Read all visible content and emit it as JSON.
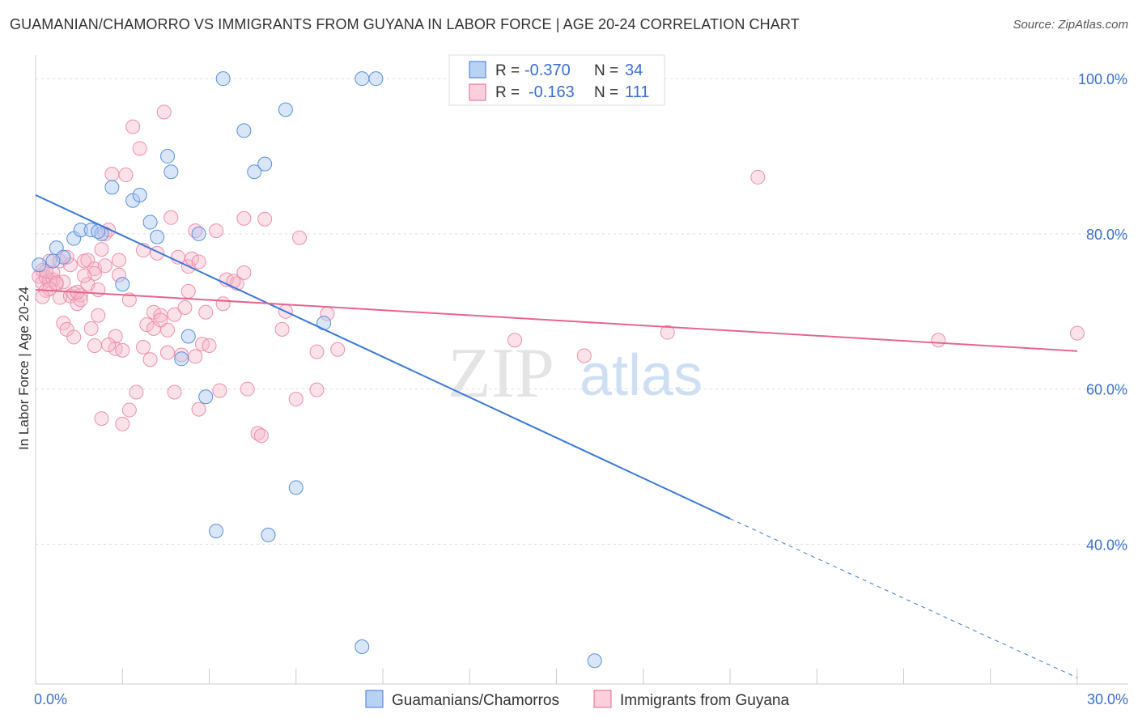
{
  "title": "GUAMANIAN/CHAMORRO VS IMMIGRANTS FROM GUYANA IN LABOR FORCE | AGE 20-24 CORRELATION CHART",
  "source": "Source: ZipAtlas.com",
  "watermark": {
    "zip": "ZIP",
    "atlas": "atlas"
  },
  "stats_box": {
    "rows": [
      {
        "r_label": "R =",
        "r_value": "-0.370",
        "n_label": "N =",
        "n_value": "34",
        "color": "#a8c8f0"
      },
      {
        "r_label": "R =",
        "r_value": "-0.163",
        "n_label": "N =",
        "n_value": "111",
        "color": "#f6b6c8"
      }
    ]
  },
  "colors": {
    "blue": "#3a78d8",
    "blue_fill": "#aac8f0",
    "pink": "#e8648e",
    "pink_fill": "#f6b6c8",
    "grid": "#dddddd",
    "accent": "#3a6fd0"
  },
  "chart_data": {
    "type": "scatter",
    "title": "GUAMANIAN/CHAMORRO VS IMMIGRANTS FROM GUYANA IN LABOR FORCE | AGE 20-24 CORRELATION CHART",
    "xlabel": "",
    "ylabel": "In Labor Force | Age 20-24",
    "xlim": [
      0,
      30
    ],
    "ylim": [
      22,
      102
    ],
    "x_tick_labels": [
      {
        "value": 0,
        "label": "0.0%"
      },
      {
        "value": 30,
        "label": "30.0%"
      }
    ],
    "y_tick_labels": [
      {
        "value": 100,
        "label": "100.0%"
      },
      {
        "value": 80,
        "label": "80.0%"
      },
      {
        "value": 60,
        "label": "60.0%"
      },
      {
        "value": 40,
        "label": "40.0%"
      }
    ],
    "series": [
      {
        "name": "Guamanians/Chamorros",
        "color": "#3a78d8",
        "points": [
          [
            0.1,
            76.0
          ],
          [
            0.6,
            78.2
          ],
          [
            0.8,
            77.0
          ],
          [
            1.1,
            79.4
          ],
          [
            0.5,
            76.5
          ],
          [
            1.3,
            80.5
          ],
          [
            1.6,
            80.5
          ],
          [
            1.9,
            80.0
          ],
          [
            2.2,
            86.0
          ],
          [
            2.5,
            73.5
          ],
          [
            2.8,
            84.3
          ],
          [
            3.0,
            85.0
          ],
          [
            3.3,
            81.5
          ],
          [
            3.5,
            79.6
          ],
          [
            3.8,
            90.0
          ],
          [
            3.9,
            88.0
          ],
          [
            4.2,
            63.9
          ],
          [
            4.4,
            66.8
          ],
          [
            4.7,
            80.0
          ],
          [
            4.9,
            59.0
          ],
          [
            5.2,
            41.7
          ],
          [
            5.4,
            100.0
          ],
          [
            6.0,
            93.3
          ],
          [
            6.3,
            88.0
          ],
          [
            6.6,
            89.0
          ],
          [
            6.7,
            41.2
          ],
          [
            7.2,
            96.0
          ],
          [
            7.5,
            47.3
          ],
          [
            8.3,
            68.5
          ],
          [
            9.4,
            100.0
          ],
          [
            9.4,
            26.8
          ],
          [
            9.8,
            100.0
          ],
          [
            16.1,
            25.0
          ],
          [
            1.8,
            80.3
          ]
        ],
        "trend": {
          "x0": 0,
          "y0": 85.0,
          "x1": 20.0,
          "y1": 43.3,
          "dashed_to_x": 30.0,
          "dashed_to_y": 22.8
        }
      },
      {
        "name": "Immigrants from Guyana",
        "color": "#e8648e",
        "points": [
          [
            0.1,
            74.5
          ],
          [
            0.2,
            75.3
          ],
          [
            0.2,
            73.7
          ],
          [
            0.3,
            74.4
          ],
          [
            0.3,
            72.7
          ],
          [
            0.4,
            74.0
          ],
          [
            0.4,
            76.5
          ],
          [
            0.5,
            74.1
          ],
          [
            0.5,
            75.0
          ],
          [
            0.6,
            73.5
          ],
          [
            0.7,
            76.5
          ],
          [
            0.7,
            71.8
          ],
          [
            0.8,
            73.8
          ],
          [
            0.8,
            68.5
          ],
          [
            0.9,
            67.7
          ],
          [
            1.0,
            72.0
          ],
          [
            1.0,
            76.0
          ],
          [
            1.1,
            66.7
          ],
          [
            1.1,
            72.3
          ],
          [
            1.2,
            71.0
          ],
          [
            1.3,
            72.1
          ],
          [
            1.3,
            71.5
          ],
          [
            1.4,
            76.5
          ],
          [
            1.5,
            73.5
          ],
          [
            1.5,
            76.6
          ],
          [
            1.6,
            67.8
          ],
          [
            1.7,
            75.5
          ],
          [
            1.7,
            74.9
          ],
          [
            1.7,
            65.6
          ],
          [
            1.8,
            72.8
          ],
          [
            1.8,
            69.5
          ],
          [
            1.9,
            56.2
          ],
          [
            1.9,
            78.0
          ],
          [
            2.0,
            80.0
          ],
          [
            2.0,
            75.9
          ],
          [
            2.1,
            80.5
          ],
          [
            2.2,
            87.7
          ],
          [
            2.3,
            66.8
          ],
          [
            2.3,
            65.2
          ],
          [
            2.4,
            76.6
          ],
          [
            2.4,
            74.7
          ],
          [
            2.5,
            65.0
          ],
          [
            2.5,
            55.5
          ],
          [
            2.6,
            87.6
          ],
          [
            2.7,
            57.3
          ],
          [
            2.8,
            93.8
          ],
          [
            2.9,
            59.6
          ],
          [
            3.0,
            91.0
          ],
          [
            3.1,
            65.4
          ],
          [
            3.1,
            77.9
          ],
          [
            3.2,
            68.3
          ],
          [
            3.3,
            63.8
          ],
          [
            3.4,
            67.8
          ],
          [
            3.4,
            69.9
          ],
          [
            3.5,
            77.5
          ],
          [
            3.6,
            69.5
          ],
          [
            3.7,
            95.7
          ],
          [
            3.8,
            67.6
          ],
          [
            3.8,
            64.7
          ],
          [
            3.9,
            82.1
          ],
          [
            4.0,
            59.6
          ],
          [
            4.0,
            69.6
          ],
          [
            4.1,
            77.0
          ],
          [
            4.2,
            64.4
          ],
          [
            4.3,
            70.5
          ],
          [
            4.4,
            75.8
          ],
          [
            4.4,
            72.6
          ],
          [
            4.5,
            76.8
          ],
          [
            4.6,
            80.4
          ],
          [
            4.6,
            64.2
          ],
          [
            4.7,
            76.4
          ],
          [
            4.7,
            57.4
          ],
          [
            4.8,
            65.8
          ],
          [
            4.9,
            69.9
          ],
          [
            5.0,
            65.6
          ],
          [
            5.2,
            80.4
          ],
          [
            5.3,
            59.8
          ],
          [
            5.4,
            71.0
          ],
          [
            5.5,
            74.1
          ],
          [
            5.8,
            73.6
          ],
          [
            6.0,
            82.0
          ],
          [
            6.0,
            75.0
          ],
          [
            6.1,
            60.0
          ],
          [
            6.4,
            54.3
          ],
          [
            6.5,
            54.0
          ],
          [
            6.6,
            81.9
          ],
          [
            7.1,
            67.7
          ],
          [
            7.2,
            70.0
          ],
          [
            7.5,
            58.7
          ],
          [
            7.6,
            79.5
          ],
          [
            8.1,
            64.8
          ],
          [
            8.1,
            59.9
          ],
          [
            8.4,
            69.7
          ],
          [
            8.7,
            65.1
          ],
          [
            13.8,
            66.3
          ],
          [
            15.8,
            64.3
          ],
          [
            18.2,
            67.3
          ],
          [
            20.8,
            87.3
          ],
          [
            26.0,
            66.3
          ],
          [
            30.0,
            67.2
          ],
          [
            0.3,
            75.2
          ],
          [
            0.6,
            73.7
          ],
          [
            1.2,
            72.5
          ],
          [
            0.9,
            77.0
          ],
          [
            2.7,
            71.5
          ],
          [
            1.4,
            74.6
          ],
          [
            3.6,
            68.9
          ],
          [
            0.4,
            72.9
          ],
          [
            2.1,
            65.7
          ],
          [
            5.7,
            73.9
          ],
          [
            0.2,
            71.9
          ]
        ],
        "trend": {
          "x0": 0,
          "y0": 72.8,
          "x1": 30.0,
          "y1": 64.9
        }
      }
    ],
    "legend": [
      "Guamanians/Chamorros",
      "Immigrants from Guyana"
    ],
    "legend_position": "bottom-center",
    "grid": true
  }
}
